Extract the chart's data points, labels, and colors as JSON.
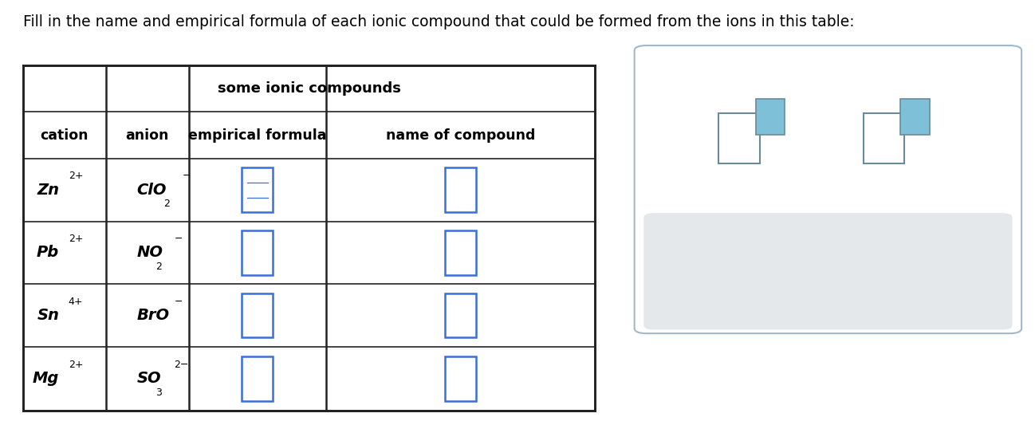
{
  "title_text": "Fill in the name and empirical formula of each ionic compound that could be formed from the ions in this table:",
  "table_title": "some ionic compounds",
  "col_headers": [
    "cation",
    "anion",
    "empirical formula",
    "name of compound"
  ],
  "rows": [
    {
      "cation": "Zn",
      "cation_charge": "2+",
      "anion": "ClO",
      "anion_sub": "2",
      "anion_charge": "−"
    },
    {
      "cation": "Pb",
      "cation_charge": "2+",
      "anion": "NO",
      "anion_sub": "2",
      "anion_charge": "−"
    },
    {
      "cation": "Sn",
      "cation_charge": "4+",
      "anion": "BrO",
      "anion_sub": "",
      "anion_charge": "−"
    },
    {
      "cation": "Mg",
      "cation_charge": "2+",
      "anion": "SO",
      "anion_sub": "3",
      "anion_charge": "2−"
    }
  ],
  "table_bg": "#ffffff",
  "border_color": "#222222",
  "header_color": "#000000",
  "cell_text_color": "#000000",
  "input_box_color": "#3a6fd8",
  "widget_bg": "#ffffff",
  "widget_border": "#a0b8c8",
  "widget_grey": "#e4e8eb",
  "widget_icon_outline": "#6a8a9a",
  "widget_icon_fill": "#7dc0d8",
  "widget_symbol_color": "#607a88",
  "title_fontsize": 13.5,
  "header_fontsize": 12.5,
  "cell_fontsize": 14,
  "table_title_fontsize": 13
}
